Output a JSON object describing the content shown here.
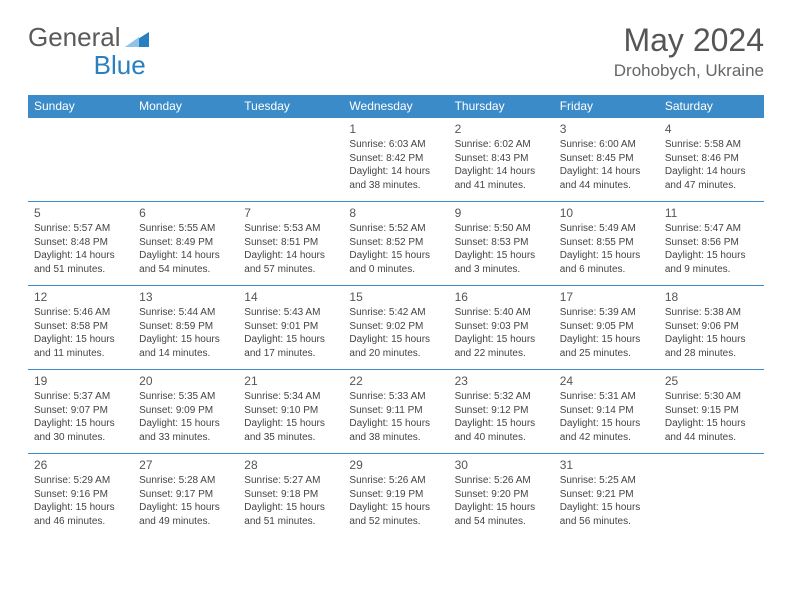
{
  "brand": {
    "part1": "General",
    "part2": "Blue"
  },
  "title": "May 2024",
  "location": "Drohobych, Ukraine",
  "weekdays": [
    "Sunday",
    "Monday",
    "Tuesday",
    "Wednesday",
    "Thursday",
    "Friday",
    "Saturday"
  ],
  "colors": {
    "header_bg": "#3b8bc9",
    "header_text": "#ffffff",
    "border": "#3b8bc9",
    "brand_gray": "#5a5a5a",
    "brand_blue": "#2a7fbf",
    "text": "#444444"
  },
  "layout": {
    "cell_fontsize": 10,
    "daynum_fontsize": 12,
    "header_fontsize": 12
  },
  "grid": [
    [
      null,
      null,
      null,
      {
        "n": "1",
        "sr": "6:03 AM",
        "ss": "8:42 PM",
        "dl": "14 hours and 38 minutes."
      },
      {
        "n": "2",
        "sr": "6:02 AM",
        "ss": "8:43 PM",
        "dl": "14 hours and 41 minutes."
      },
      {
        "n": "3",
        "sr": "6:00 AM",
        "ss": "8:45 PM",
        "dl": "14 hours and 44 minutes."
      },
      {
        "n": "4",
        "sr": "5:58 AM",
        "ss": "8:46 PM",
        "dl": "14 hours and 47 minutes."
      }
    ],
    [
      {
        "n": "5",
        "sr": "5:57 AM",
        "ss": "8:48 PM",
        "dl": "14 hours and 51 minutes."
      },
      {
        "n": "6",
        "sr": "5:55 AM",
        "ss": "8:49 PM",
        "dl": "14 hours and 54 minutes."
      },
      {
        "n": "7",
        "sr": "5:53 AM",
        "ss": "8:51 PM",
        "dl": "14 hours and 57 minutes."
      },
      {
        "n": "8",
        "sr": "5:52 AM",
        "ss": "8:52 PM",
        "dl": "15 hours and 0 minutes."
      },
      {
        "n": "9",
        "sr": "5:50 AM",
        "ss": "8:53 PM",
        "dl": "15 hours and 3 minutes."
      },
      {
        "n": "10",
        "sr": "5:49 AM",
        "ss": "8:55 PM",
        "dl": "15 hours and 6 minutes."
      },
      {
        "n": "11",
        "sr": "5:47 AM",
        "ss": "8:56 PM",
        "dl": "15 hours and 9 minutes."
      }
    ],
    [
      {
        "n": "12",
        "sr": "5:46 AM",
        "ss": "8:58 PM",
        "dl": "15 hours and 11 minutes."
      },
      {
        "n": "13",
        "sr": "5:44 AM",
        "ss": "8:59 PM",
        "dl": "15 hours and 14 minutes."
      },
      {
        "n": "14",
        "sr": "5:43 AM",
        "ss": "9:01 PM",
        "dl": "15 hours and 17 minutes."
      },
      {
        "n": "15",
        "sr": "5:42 AM",
        "ss": "9:02 PM",
        "dl": "15 hours and 20 minutes."
      },
      {
        "n": "16",
        "sr": "5:40 AM",
        "ss": "9:03 PM",
        "dl": "15 hours and 22 minutes."
      },
      {
        "n": "17",
        "sr": "5:39 AM",
        "ss": "9:05 PM",
        "dl": "15 hours and 25 minutes."
      },
      {
        "n": "18",
        "sr": "5:38 AM",
        "ss": "9:06 PM",
        "dl": "15 hours and 28 minutes."
      }
    ],
    [
      {
        "n": "19",
        "sr": "5:37 AM",
        "ss": "9:07 PM",
        "dl": "15 hours and 30 minutes."
      },
      {
        "n": "20",
        "sr": "5:35 AM",
        "ss": "9:09 PM",
        "dl": "15 hours and 33 minutes."
      },
      {
        "n": "21",
        "sr": "5:34 AM",
        "ss": "9:10 PM",
        "dl": "15 hours and 35 minutes."
      },
      {
        "n": "22",
        "sr": "5:33 AM",
        "ss": "9:11 PM",
        "dl": "15 hours and 38 minutes."
      },
      {
        "n": "23",
        "sr": "5:32 AM",
        "ss": "9:12 PM",
        "dl": "15 hours and 40 minutes."
      },
      {
        "n": "24",
        "sr": "5:31 AM",
        "ss": "9:14 PM",
        "dl": "15 hours and 42 minutes."
      },
      {
        "n": "25",
        "sr": "5:30 AM",
        "ss": "9:15 PM",
        "dl": "15 hours and 44 minutes."
      }
    ],
    [
      {
        "n": "26",
        "sr": "5:29 AM",
        "ss": "9:16 PM",
        "dl": "15 hours and 46 minutes."
      },
      {
        "n": "27",
        "sr": "5:28 AM",
        "ss": "9:17 PM",
        "dl": "15 hours and 49 minutes."
      },
      {
        "n": "28",
        "sr": "5:27 AM",
        "ss": "9:18 PM",
        "dl": "15 hours and 51 minutes."
      },
      {
        "n": "29",
        "sr": "5:26 AM",
        "ss": "9:19 PM",
        "dl": "15 hours and 52 minutes."
      },
      {
        "n": "30",
        "sr": "5:26 AM",
        "ss": "9:20 PM",
        "dl": "15 hours and 54 minutes."
      },
      {
        "n": "31",
        "sr": "5:25 AM",
        "ss": "9:21 PM",
        "dl": "15 hours and 56 minutes."
      },
      null
    ]
  ],
  "labels": {
    "sunrise": "Sunrise: ",
    "sunset": "Sunset: ",
    "daylight": "Daylight: "
  }
}
